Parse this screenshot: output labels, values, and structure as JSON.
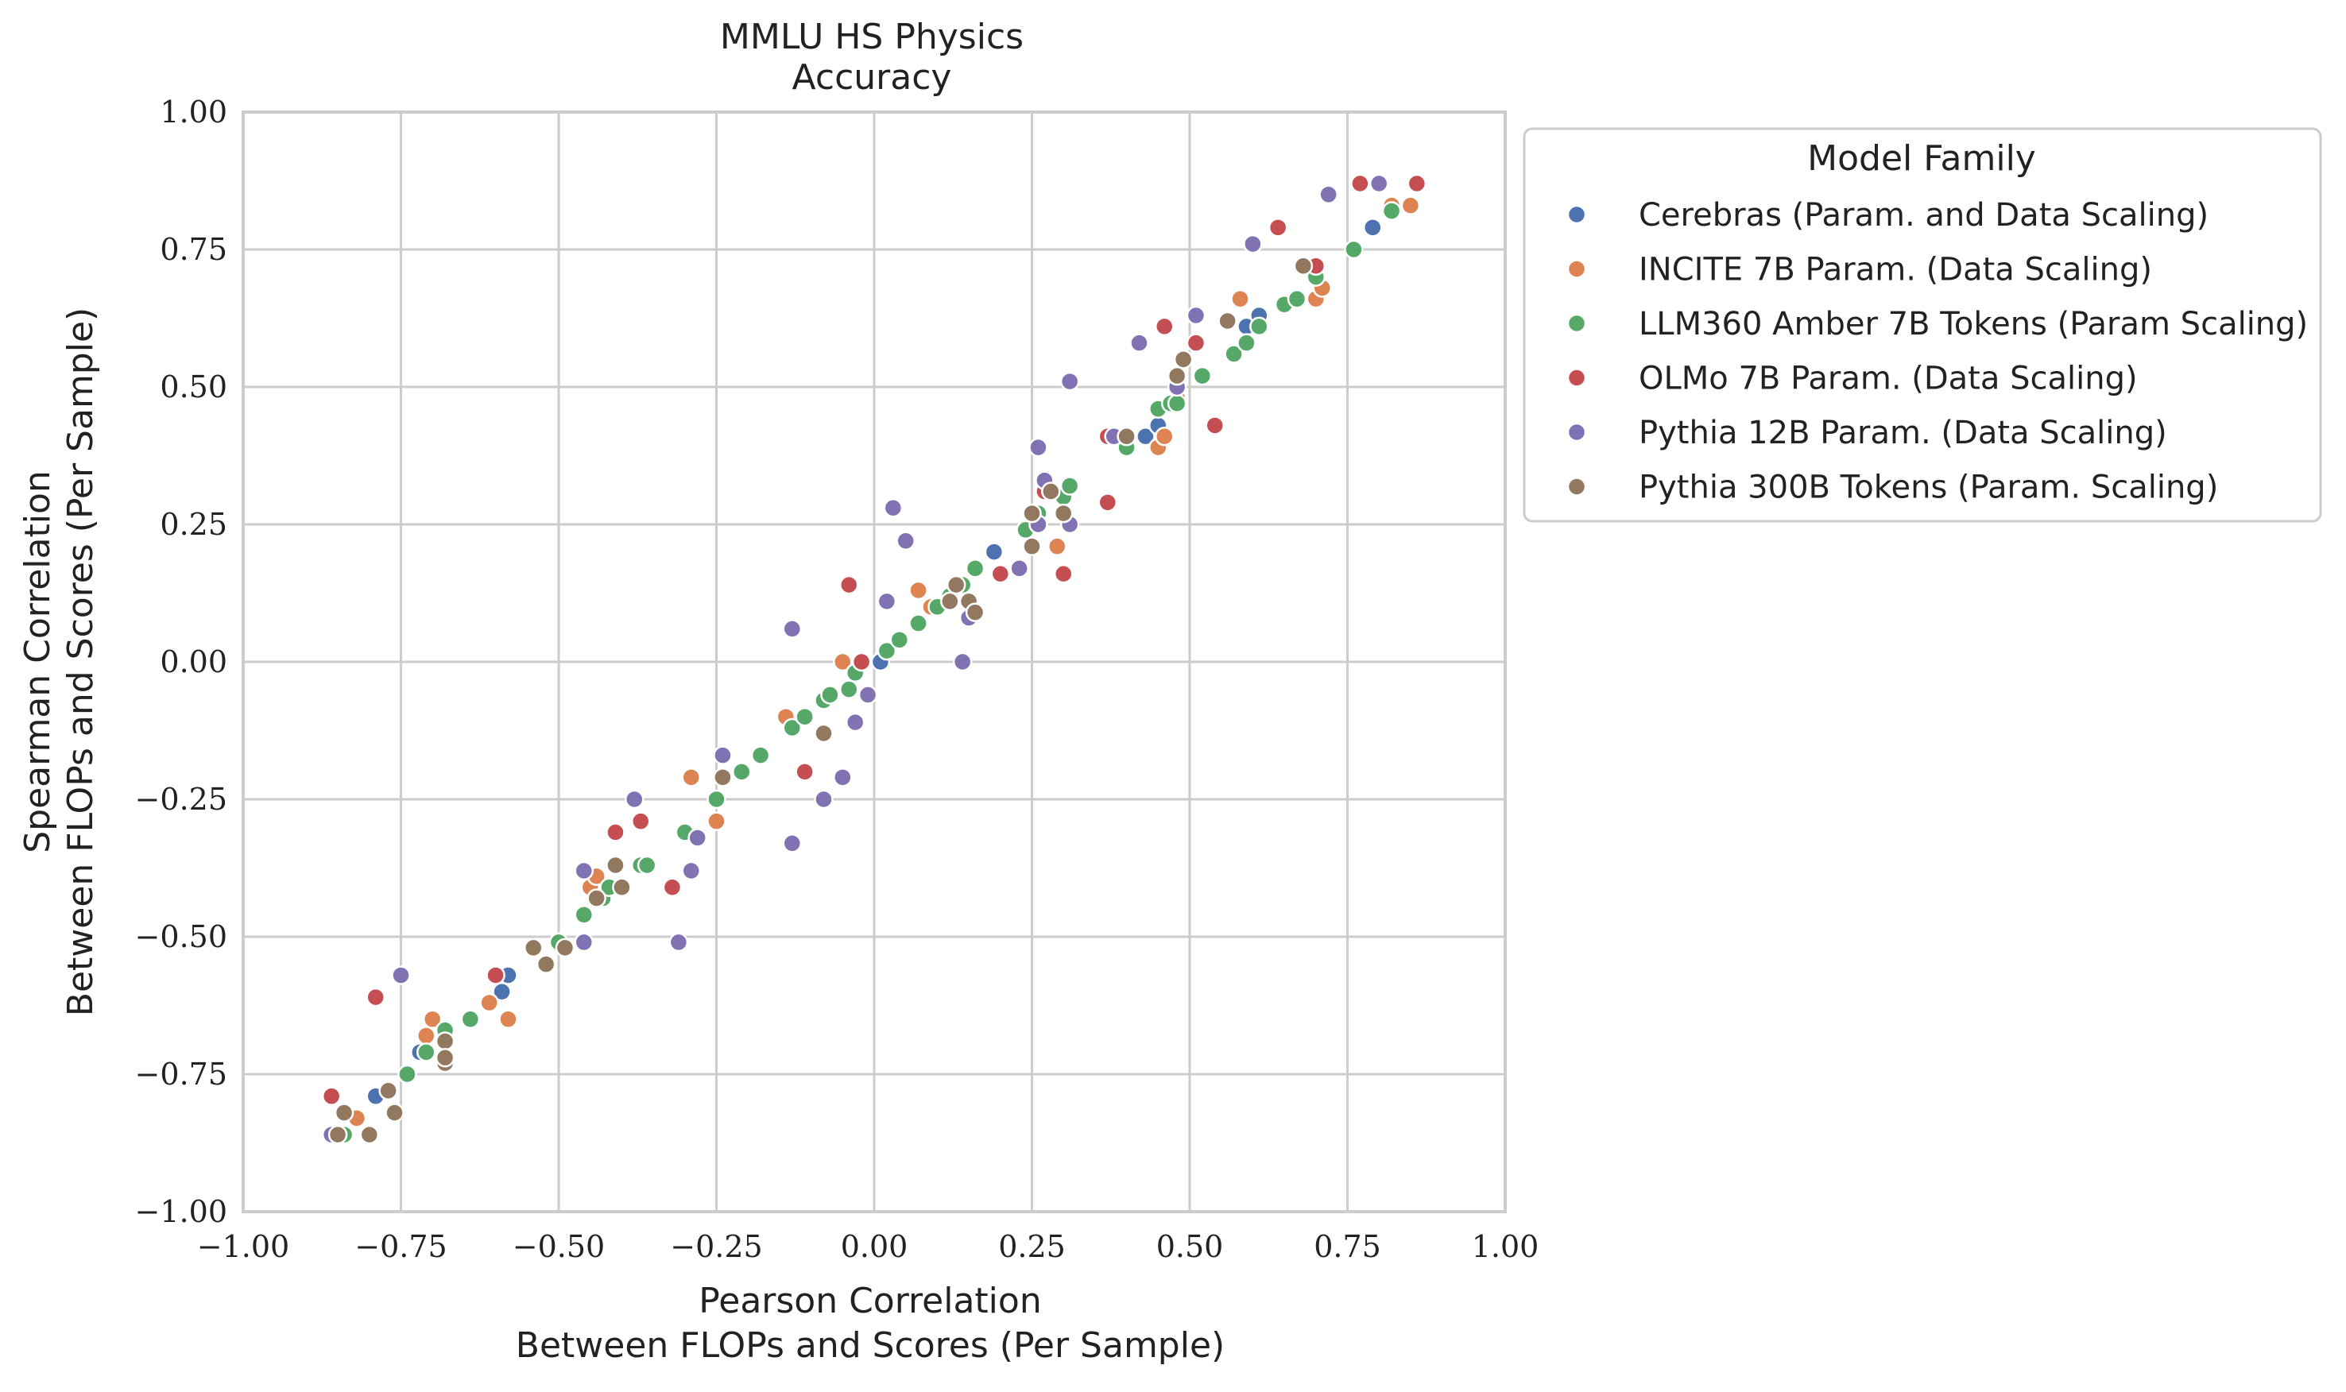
{
  "chart_data": {
    "type": "scatter",
    "title": "MMLU HS Physics",
    "subtitle": "Accuracy",
    "xlabel": [
      "Pearson Correlation",
      "Between FLOPs and Scores (Per Sample)"
    ],
    "ylabel": [
      "Spearman Correlation",
      "Between FLOPs and Scores (Per Sample)"
    ],
    "xlim": [
      -1.0,
      1.0
    ],
    "ylim": [
      -1.0,
      1.0
    ],
    "xticks": [
      -1.0,
      -0.75,
      -0.5,
      -0.25,
      0.0,
      0.25,
      0.5,
      0.75,
      1.0
    ],
    "yticks": [
      -1.0,
      -0.75,
      -0.5,
      -0.25,
      0.0,
      0.25,
      0.5,
      0.75,
      1.0
    ],
    "xtick_labels": [
      "−1.00",
      "−0.75",
      "−0.50",
      "−0.25",
      "0.00",
      "0.25",
      "0.50",
      "0.75",
      "1.00"
    ],
    "ytick_labels": [
      "−1.00",
      "−0.75",
      "−0.50",
      "−0.25",
      "0.00",
      "0.25",
      "0.50",
      "0.75",
      "1.00"
    ],
    "grid": true,
    "legend_title": "Model Family",
    "legend_position": "outside-right-top",
    "series": [
      {
        "name": "Cerebras (Param. and Data Scaling)",
        "color": "#4c72b0",
        "points": [
          [
            -0.86,
            -0.86
          ],
          [
            -0.79,
            -0.79
          ],
          [
            -0.72,
            -0.71
          ],
          [
            -0.59,
            -0.6
          ],
          [
            -0.58,
            -0.57
          ],
          [
            0.01,
            0.0
          ],
          [
            0.19,
            0.2
          ],
          [
            0.43,
            0.41
          ],
          [
            0.45,
            0.43
          ],
          [
            0.59,
            0.61
          ],
          [
            0.61,
            0.63
          ],
          [
            0.79,
            0.79
          ],
          [
            0.59,
            0.58
          ]
        ]
      },
      {
        "name": "INCITE 7B Param. (Data Scaling)",
        "color": "#dd8452",
        "points": [
          [
            -0.82,
            -0.83
          ],
          [
            -0.71,
            -0.68
          ],
          [
            -0.7,
            -0.65
          ],
          [
            -0.61,
            -0.62
          ],
          [
            -0.58,
            -0.65
          ],
          [
            -0.45,
            -0.41
          ],
          [
            -0.44,
            -0.39
          ],
          [
            -0.29,
            -0.21
          ],
          [
            -0.25,
            -0.29
          ],
          [
            -0.14,
            -0.1
          ],
          [
            -0.08,
            -0.13
          ],
          [
            -0.05,
            0.0
          ],
          [
            0.07,
            0.13
          ],
          [
            0.09,
            0.1
          ],
          [
            0.29,
            0.21
          ],
          [
            0.45,
            0.39
          ],
          [
            0.46,
            0.41
          ],
          [
            0.48,
            0.48
          ],
          [
            0.58,
            0.66
          ],
          [
            0.7,
            0.66
          ],
          [
            0.71,
            0.68
          ],
          [
            0.82,
            0.83
          ],
          [
            0.85,
            0.83
          ]
        ]
      },
      {
        "name": "LLM360 Amber 7B Tokens (Param Scaling)",
        "color": "#55a868",
        "points": [
          [
            -0.84,
            -0.86
          ],
          [
            -0.74,
            -0.75
          ],
          [
            -0.71,
            -0.71
          ],
          [
            -0.68,
            -0.67
          ],
          [
            -0.64,
            -0.65
          ],
          [
            -0.5,
            -0.51
          ],
          [
            -0.46,
            -0.46
          ],
          [
            -0.43,
            -0.43
          ],
          [
            -0.42,
            -0.41
          ],
          [
            -0.37,
            -0.37
          ],
          [
            -0.36,
            -0.37
          ],
          [
            -0.3,
            -0.31
          ],
          [
            -0.25,
            -0.25
          ],
          [
            -0.21,
            -0.2
          ],
          [
            -0.18,
            -0.17
          ],
          [
            -0.13,
            -0.12
          ],
          [
            -0.11,
            -0.1
          ],
          [
            -0.08,
            -0.07
          ],
          [
            -0.07,
            -0.06
          ],
          [
            -0.04,
            -0.05
          ],
          [
            -0.03,
            -0.02
          ],
          [
            0.02,
            0.02
          ],
          [
            0.04,
            0.04
          ],
          [
            0.07,
            0.07
          ],
          [
            0.1,
            0.1
          ],
          [
            0.12,
            0.12
          ],
          [
            0.14,
            0.14
          ],
          [
            0.16,
            0.17
          ],
          [
            0.24,
            0.24
          ],
          [
            0.26,
            0.27
          ],
          [
            0.3,
            0.3
          ],
          [
            0.31,
            0.32
          ],
          [
            0.4,
            0.39
          ],
          [
            0.45,
            0.46
          ],
          [
            0.47,
            0.47
          ],
          [
            0.48,
            0.47
          ],
          [
            0.52,
            0.52
          ],
          [
            0.57,
            0.56
          ],
          [
            0.59,
            0.58
          ],
          [
            0.61,
            0.61
          ],
          [
            0.65,
            0.65
          ],
          [
            0.67,
            0.66
          ],
          [
            0.7,
            0.7
          ],
          [
            0.76,
            0.75
          ],
          [
            0.82,
            0.82
          ]
        ]
      },
      {
        "name": "OLMo 7B Param. (Data Scaling)",
        "color": "#c44e52",
        "points": [
          [
            -0.86,
            -0.79
          ],
          [
            -0.79,
            -0.61
          ],
          [
            -0.6,
            -0.57
          ],
          [
            -0.41,
            -0.31
          ],
          [
            -0.37,
            -0.29
          ],
          [
            -0.32,
            -0.41
          ],
          [
            -0.11,
            -0.2
          ],
          [
            -0.04,
            0.14
          ],
          [
            -0.02,
            0.0
          ],
          [
            0.2,
            0.16
          ],
          [
            0.27,
            0.31
          ],
          [
            0.3,
            0.16
          ],
          [
            0.37,
            0.29
          ],
          [
            0.37,
            0.41
          ],
          [
            0.46,
            0.61
          ],
          [
            0.51,
            0.58
          ],
          [
            0.54,
            0.43
          ],
          [
            0.64,
            0.79
          ],
          [
            0.7,
            0.72
          ],
          [
            0.77,
            0.87
          ],
          [
            0.86,
            0.87
          ]
        ]
      },
      {
        "name": "Pythia 12B Param. (Data Scaling)",
        "color": "#8172b3",
        "points": [
          [
            -0.86,
            -0.86
          ],
          [
            -0.75,
            -0.57
          ],
          [
            -0.46,
            -0.38
          ],
          [
            -0.46,
            -0.51
          ],
          [
            -0.38,
            -0.25
          ],
          [
            -0.31,
            -0.51
          ],
          [
            -0.29,
            -0.38
          ],
          [
            -0.28,
            -0.32
          ],
          [
            -0.24,
            -0.17
          ],
          [
            -0.13,
            0.06
          ],
          [
            -0.13,
            -0.33
          ],
          [
            -0.08,
            -0.25
          ],
          [
            -0.05,
            -0.21
          ],
          [
            -0.03,
            -0.11
          ],
          [
            -0.01,
            -0.06
          ],
          [
            0.02,
            0.11
          ],
          [
            0.03,
            0.28
          ],
          [
            0.05,
            0.22
          ],
          [
            0.14,
            0.0
          ],
          [
            0.15,
            0.08
          ],
          [
            0.23,
            0.17
          ],
          [
            0.26,
            0.39
          ],
          [
            0.26,
            0.25
          ],
          [
            0.27,
            0.33
          ],
          [
            0.31,
            0.51
          ],
          [
            0.31,
            0.25
          ],
          [
            0.38,
            0.41
          ],
          [
            0.42,
            0.58
          ],
          [
            0.48,
            0.5
          ],
          [
            0.51,
            0.63
          ],
          [
            0.6,
            0.76
          ],
          [
            0.72,
            0.85
          ],
          [
            0.8,
            0.87
          ]
        ]
      },
      {
        "name": "Pythia 300B Tokens (Param. Scaling)",
        "color": "#937860",
        "points": [
          [
            -0.85,
            -0.86
          ],
          [
            -0.84,
            -0.82
          ],
          [
            -0.8,
            -0.86
          ],
          [
            -0.77,
            -0.78
          ],
          [
            -0.76,
            -0.82
          ],
          [
            -0.68,
            -0.73
          ],
          [
            -0.68,
            -0.69
          ],
          [
            -0.68,
            -0.72
          ],
          [
            -0.54,
            -0.52
          ],
          [
            -0.52,
            -0.55
          ],
          [
            -0.49,
            -0.52
          ],
          [
            -0.44,
            -0.43
          ],
          [
            -0.41,
            -0.37
          ],
          [
            -0.4,
            -0.41
          ],
          [
            -0.24,
            -0.21
          ],
          [
            -0.08,
            -0.13
          ],
          [
            0.12,
            0.11
          ],
          [
            0.13,
            0.14
          ],
          [
            0.15,
            0.11
          ],
          [
            0.16,
            0.09
          ],
          [
            0.25,
            0.21
          ],
          [
            0.25,
            0.27
          ],
          [
            0.28,
            0.31
          ],
          [
            0.3,
            0.27
          ],
          [
            0.4,
            0.41
          ],
          [
            0.48,
            0.52
          ],
          [
            0.49,
            0.55
          ],
          [
            0.56,
            0.62
          ],
          [
            0.68,
            0.72
          ]
        ]
      }
    ]
  }
}
